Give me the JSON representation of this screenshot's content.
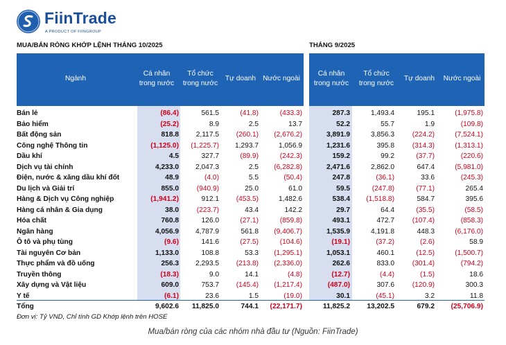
{
  "brand": {
    "name": "FiinTrade",
    "tagline": "A PRODUCT OF FIINGROUP",
    "icon": "fiintrade-logo-icon"
  },
  "titles": {
    "left": "MUA/BÁN RÒNG KHỚP LỆNH THÁNG 10/2025",
    "right": "THÁNG 9/2025"
  },
  "headers": {
    "sector": "Ngành",
    "left": [
      [
        "Cá nhân",
        "trong nước"
      ],
      [
        "Tổ chức",
        "trong nước"
      ],
      [
        "Tự doanh"
      ],
      [
        "Nước ngoài"
      ]
    ],
    "right": [
      [
        "Cá nhân",
        "trong nước"
      ],
      [
        "Tổ chức",
        "trong nước"
      ],
      [
        "Tự doanh"
      ],
      [
        "Nước ngoài"
      ]
    ]
  },
  "rows": [
    {
      "name": "Bán lẻ",
      "v": [
        "(86.4)",
        "561.5",
        "(41.8)",
        "(433.3)",
        "287.3",
        "1,493.4",
        "195.1",
        "(1,975.8)"
      ]
    },
    {
      "name": "Bảo hiểm",
      "v": [
        "(25.2)",
        "8.9",
        "2.5",
        "13.7",
        "52.2",
        "55.7",
        "1.9",
        "(109.8)"
      ]
    },
    {
      "name": "Bất động sản",
      "v": [
        "818.8",
        "2,117.5",
        "(260.1)",
        "(2,676.2)",
        "3,891.9",
        "3,856.3",
        "(224.2)",
        "(7,524.1)"
      ]
    },
    {
      "name": "Công nghệ Thông tin",
      "v": [
        "(1,125.0)",
        "(1,225.7)",
        "1,293.7",
        "1,056.9",
        "1,231.6",
        "395.8",
        "(314.3)",
        "(1,313.1)"
      ]
    },
    {
      "name": "Dầu khí",
      "v": [
        "4.5",
        "327.7",
        "(89.9)",
        "(242.3)",
        "159.2",
        "99.2",
        "(37.7)",
        "(220.6)"
      ]
    },
    {
      "name": "Dịch vụ tài chính",
      "v": [
        "4,233.0",
        "2,047.3",
        "2.5",
        "(6,282.8)",
        "2,471.6",
        "2,862.0",
        "647.4",
        "(5,981.0)"
      ]
    },
    {
      "name": "Điện, nước & xăng dầu khí đốt",
      "v": [
        "48.9",
        "(4.0)",
        "5.5",
        "(50.4)",
        "247.8",
        "(36.1)",
        "33.6",
        "(245.3)"
      ]
    },
    {
      "name": "Du lịch và Giải trí",
      "v": [
        "855.0",
        "(940.9)",
        "25.0",
        "61.0",
        "59.5",
        "(247.8)",
        "(77.1)",
        "265.4"
      ]
    },
    {
      "name": "Hàng & Dịch vụ Công nghiệp",
      "v": [
        "(1,941.2)",
        "912.1",
        "(453.5)",
        "1,482.6",
        "538.4",
        "(1,518.8)",
        "584.7",
        "395.6"
      ]
    },
    {
      "name": "Hàng cá nhân & Gia dụng",
      "v": [
        "38.0",
        "(223.7)",
        "43.4",
        "142.2",
        "29.7",
        "64.4",
        "(35.5)",
        "(58.5)"
      ]
    },
    {
      "name": "Hóa chất",
      "v": [
        "760.8",
        "126.0",
        "(27.1)",
        "(859.8)",
        "493.1",
        "472.7",
        "(107.4)",
        "(858.3)"
      ]
    },
    {
      "name": "Ngân hàng",
      "v": [
        "4,056.9",
        "4,787.9",
        "561.8",
        "(9,406.7)",
        "1,535.9",
        "4,191.8",
        "448.3",
        "(6,176.0)"
      ]
    },
    {
      "name": "Ô tô và phụ tùng",
      "v": [
        "(9.6)",
        "141.6",
        "(27.5)",
        "(104.6)",
        "(19.1)",
        "(37.2)",
        "(2.6)",
        "58.9"
      ]
    },
    {
      "name": "Tài nguyên Cơ bản",
      "v": [
        "1,133.0",
        "108.8",
        "53.3",
        "(1,295.1)",
        "1,053.1",
        "460.1",
        "(12.5)",
        "(1,500.7)"
      ]
    },
    {
      "name": "Thực phẩm và đồ uống",
      "v": [
        "256.3",
        "2,293.5",
        "(213.8)",
        "(2,336.0)",
        "262.6",
        "833.0",
        "(301.4)",
        "(794.2)"
      ]
    },
    {
      "name": "Truyền thông",
      "v": [
        "(18.3)",
        "9.0",
        "14.1",
        "(4.8)",
        "(12.7)",
        "(4.4)",
        "(1.5)",
        "18.6"
      ]
    },
    {
      "name": "Xây dựng và Vật liệu",
      "v": [
        "609.0",
        "753.7",
        "(145.4)",
        "(1,217.4)",
        "(487.0)",
        "307.6",
        "(120.9)",
        "300.3"
      ]
    },
    {
      "name": "Y tế",
      "v": [
        "(6.1)",
        "23.6",
        "1.5",
        "(19.0)",
        "30.1",
        "(45.1)",
        "3.2",
        "11.8"
      ]
    }
  ],
  "total": {
    "name": "Tổng",
    "v": [
      "9,602.6",
      "11,825.0",
      "744.1",
      "(22,171.7)",
      "11,825.2",
      "13,202.5",
      "679.2",
      "(25,706.9)"
    ]
  },
  "note": "Đơn vị: Tỷ VND, Chỉ tính GD Khớp lệnh trên HOSE",
  "caption": "Mua/bán ròng của các nhóm nhà đầu tư (Nguồn: FiinTrade)",
  "colors": {
    "header": "#1e63b4",
    "band": "#d6deef",
    "negative": "#d0021b",
    "brand": "#1b4f9a"
  }
}
